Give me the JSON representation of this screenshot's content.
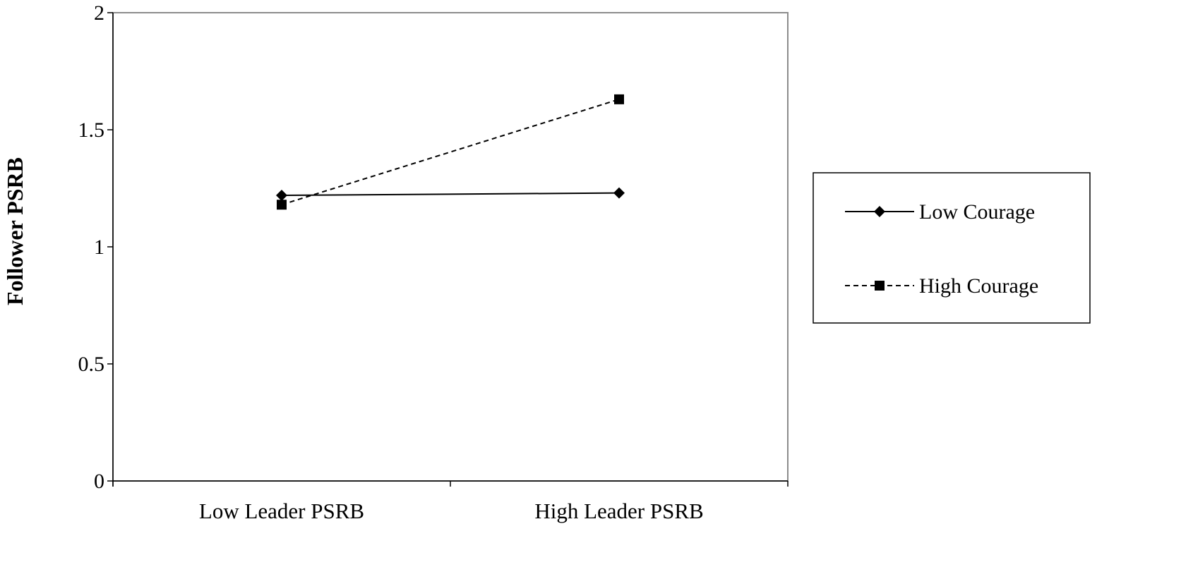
{
  "chart_data": {
    "type": "line",
    "title": "",
    "xlabel": "",
    "ylabel": "Follower PSRB",
    "ylim": [
      0,
      2
    ],
    "yticks": [
      "0",
      "0.5",
      "1",
      "1.5",
      "2"
    ],
    "categories": [
      "Low Leader PSRB",
      "High Leader PSRB"
    ],
    "grid": false,
    "legend_position": "right",
    "series": [
      {
        "name": "Low Courage",
        "values": [
          1.22,
          1.23
        ],
        "line_style": "solid",
        "marker": "diamond",
        "color": "#000000"
      },
      {
        "name": "High Courage",
        "values": [
          1.18,
          1.63
        ],
        "line_style": "dashed",
        "marker": "square",
        "color": "#000000"
      }
    ]
  }
}
